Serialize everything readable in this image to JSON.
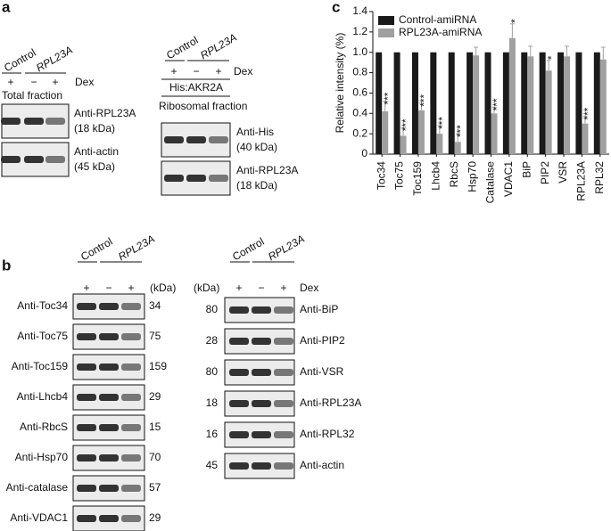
{
  "panels": {
    "a": {
      "label": "a",
      "left": {
        "groups": [
          "Control",
          "RPL23A"
        ],
        "lanes": [
          "+",
          "−",
          "+"
        ],
        "treatment": "Dex",
        "fraction": "Total fraction",
        "blots": [
          {
            "antibody": "Anti-RPL23A",
            "size": "(18 kDa)"
          },
          {
            "antibody": "Anti-actin",
            "size": "(45 kDa)"
          }
        ]
      },
      "right": {
        "groups": [
          "Control",
          "RPL23A"
        ],
        "lanes": [
          "+",
          "−",
          "+"
        ],
        "treatment": "Dex",
        "construct": "His:AKR2A",
        "fraction": "Ribosomal fraction",
        "blots": [
          {
            "antibody": "Anti-His",
            "size": "(40 kDa)"
          },
          {
            "antibody": "Anti-RPL23A",
            "size": "(18 kDa)"
          }
        ]
      }
    },
    "b": {
      "label": "b",
      "left": {
        "groups": [
          "Control",
          "RPL23A"
        ],
        "lanes": [
          "+",
          "−",
          "+"
        ],
        "unit": "(kDa)",
        "blots": [
          {
            "antibody": "Anti-Toc34",
            "kda": 34
          },
          {
            "antibody": "Anti-Toc75",
            "kda": 75
          },
          {
            "antibody": "Anti-Toc159",
            "kda": 159
          },
          {
            "antibody": "Anti-Lhcb4",
            "kda": 29
          },
          {
            "antibody": "Anti-RbcS",
            "kda": 15
          },
          {
            "antibody": "Anti-Hsp70",
            "kda": 70
          },
          {
            "antibody": "Anti-catalase",
            "kda": 57
          },
          {
            "antibody": "Anti-VDAC1",
            "kda": 29
          }
        ]
      },
      "right": {
        "groups": [
          "Control",
          "RPL23A"
        ],
        "lanes": [
          "+",
          "−",
          "+"
        ],
        "unit": "(kDa)",
        "treatment": "Dex",
        "blots": [
          {
            "antibody": "Anti-BiP",
            "kda": 80
          },
          {
            "antibody": "Anti-PIP2",
            "kda": 28
          },
          {
            "antibody": "Anti-VSR",
            "kda": 80
          },
          {
            "antibody": "Anti-RPL23A",
            "kda": 18
          },
          {
            "antibody": "Anti-RPL32",
            "kda": 16
          },
          {
            "antibody": "Anti-actin",
            "kda": 45
          }
        ]
      }
    },
    "c": {
      "label": "c"
    }
  },
  "chart_data": {
    "type": "bar",
    "ylabel": "Relative intensity (%)",
    "categories": [
      "Toc34",
      "Toc75",
      "Toc159",
      "Lhcb4",
      "RbcS",
      "Hsp70",
      "Catalase",
      "VDAC1",
      "BiP",
      "PIP2",
      "VSR",
      "RPL23A",
      "RPL32"
    ],
    "series": [
      {
        "name": "Control-amiRNA",
        "color": "#1a1a1a",
        "values": [
          1,
          1,
          1,
          1,
          1,
          1,
          1,
          1,
          1,
          1,
          1,
          1,
          1
        ]
      },
      {
        "name": "RPL23A-amiRNA",
        "color": "#a0a0a0",
        "values": [
          0.42,
          0.18,
          0.43,
          0.2,
          0.12,
          0.97,
          0.4,
          1.14,
          0.96,
          0.82,
          0.96,
          0.3,
          0.93
        ],
        "errors": [
          0.1,
          0.08,
          0.07,
          0.08,
          0.08,
          0.08,
          0.06,
          0.14,
          0.1,
          0.1,
          0.1,
          0.07,
          0.12
        ]
      }
    ],
    "significance": [
      "***",
      "***",
      "***",
      "***",
      "***",
      null,
      "***",
      "*",
      null,
      "*",
      null,
      "***",
      null
    ],
    "ylim": [
      0,
      1.4
    ],
    "yticks": [
      0,
      0.2,
      0.4,
      0.6,
      0.8,
      {
        "value": 1,
        "label": "1.0"
      },
      1.2,
      1.4
    ],
    "legend": "top-left"
  }
}
